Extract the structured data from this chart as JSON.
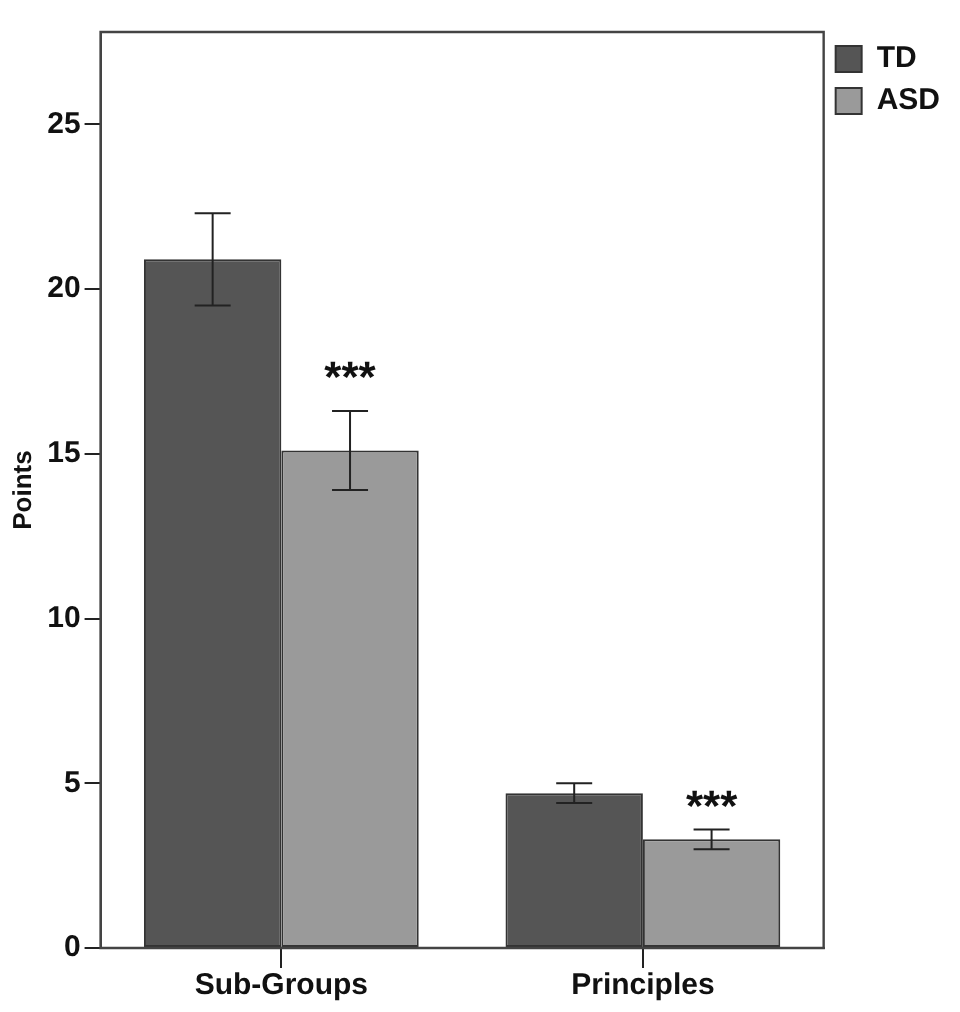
{
  "chart_data": {
    "type": "bar",
    "ylabel": "Points",
    "categories": [
      "Sub-Groups",
      "Principles"
    ],
    "series": [
      {
        "name": "TD",
        "color": "#555555",
        "values": [
          20.9,
          4.7
        ],
        "errors": [
          [
            19.5,
            22.3
          ],
          [
            4.4,
            5.0
          ]
        ]
      },
      {
        "name": "ASD",
        "color": "#9a9a9a",
        "values": [
          15.1,
          3.3
        ],
        "errors": [
          [
            13.9,
            16.3
          ],
          [
            3.0,
            3.6
          ]
        ]
      }
    ],
    "ylim": [
      0,
      27.8
    ],
    "yticks": [
      0,
      5,
      10,
      15,
      20,
      25
    ],
    "grid": false,
    "legend": "top right",
    "annotations": [
      {
        "text": "***",
        "x": "Sub-Groups",
        "y": 17.5
      },
      {
        "text": "***",
        "x": "Principles",
        "y": 4.45
      }
    ]
  }
}
